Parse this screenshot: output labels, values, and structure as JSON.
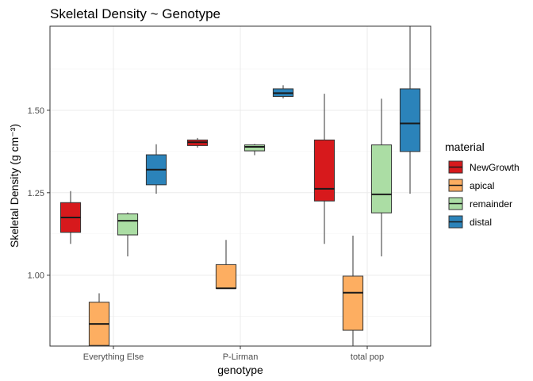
{
  "chart_data": {
    "type": "boxplot",
    "title": "Skeletal Density ~ Genotype",
    "xlabel": "genotype",
    "ylabel": "Skeletal Density (g cm⁻³)",
    "ylim": [
      0.785,
      1.755
    ],
    "yticks": [
      1.0,
      1.25,
      1.5
    ],
    "ytick_labels": [
      "1.00",
      "1.25",
      "1.50"
    ],
    "grid": true,
    "categories": [
      "Everything Else",
      "P-Lirman",
      "total pop"
    ],
    "legend": {
      "title": "material",
      "position": "right",
      "entries": [
        "NewGrowth",
        "apical",
        "remainder",
        "distal"
      ]
    },
    "series": [
      {
        "name": "NewGrowth",
        "color": "#d7191c",
        "boxes": [
          {
            "category": "Everything Else",
            "min": 1.095,
            "q1": 1.13,
            "median": 1.175,
            "q3": 1.22,
            "max": 1.255
          },
          {
            "category": "P-Lirman",
            "min": 1.387,
            "q1": 1.393,
            "median": 1.403,
            "q3": 1.41,
            "max": 1.416
          },
          {
            "category": "total pop",
            "min": 1.095,
            "q1": 1.225,
            "median": 1.262,
            "q3": 1.41,
            "max": 1.55
          }
        ]
      },
      {
        "name": "apical",
        "color": "#fdae61",
        "boxes": [
          {
            "category": "Everything Else",
            "min": 0.785,
            "q1": 0.787,
            "median": 0.852,
            "q3": 0.918,
            "max": 0.945
          },
          {
            "category": "P-Lirman",
            "min": 0.96,
            "q1": 0.96,
            "median": 0.96,
            "q3": 1.032,
            "max": 1.107
          },
          {
            "category": "total pop",
            "min": 0.785,
            "q1": 0.833,
            "median": 0.947,
            "q3": 0.997,
            "max": 1.12
          }
        ]
      },
      {
        "name": "remainder",
        "color": "#abdda4",
        "boxes": [
          {
            "category": "Everything Else",
            "min": 1.057,
            "q1": 1.122,
            "median": 1.165,
            "q3": 1.186,
            "max": 1.19
          },
          {
            "category": "P-Lirman",
            "min": 1.364,
            "q1": 1.377,
            "median": 1.389,
            "q3": 1.395,
            "max": 1.398
          },
          {
            "category": "total pop",
            "min": 1.057,
            "q1": 1.189,
            "median": 1.245,
            "q3": 1.395,
            "max": 1.535
          }
        ]
      },
      {
        "name": "distal",
        "color": "#2b83ba",
        "boxes": [
          {
            "category": "Everything Else",
            "min": 1.247,
            "q1": 1.274,
            "median": 1.32,
            "q3": 1.365,
            "max": 1.397
          },
          {
            "category": "P-Lirman",
            "min": 1.536,
            "q1": 1.542,
            "median": 1.552,
            "q3": 1.565,
            "max": 1.576
          },
          {
            "category": "total pop",
            "min": 1.247,
            "q1": 1.375,
            "median": 1.46,
            "q3": 1.565,
            "max": 1.755
          }
        ]
      }
    ]
  }
}
